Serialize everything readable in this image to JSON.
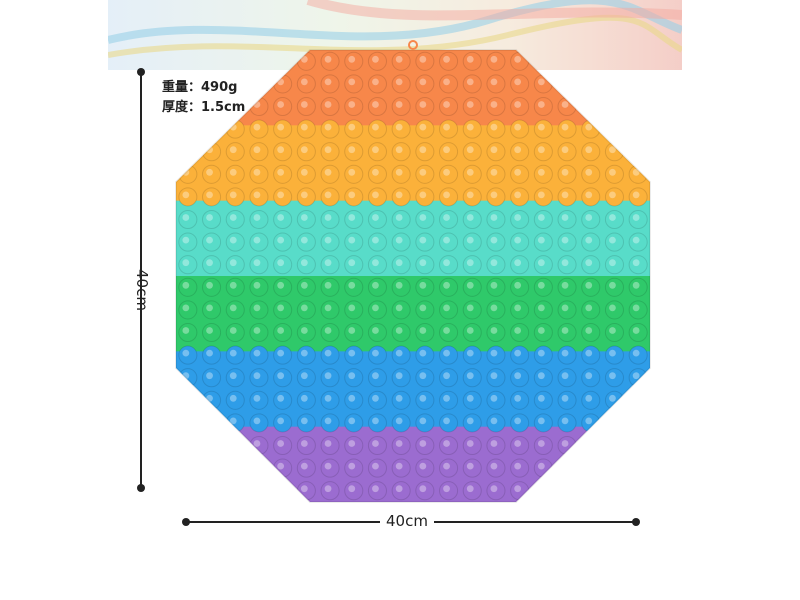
{
  "specs": {
    "weight": "重量：490g",
    "thickness": "厚度：1.5cm"
  },
  "dimensions": {
    "height_label": "40cm",
    "width_label": "40cm"
  },
  "colors": {
    "orange": "#f7874a",
    "yellow": "#fbb13a",
    "teal": "#58dcc9",
    "green": "#2fc96a",
    "blue": "#2e9de8",
    "purple": "#9b6cd0"
  }
}
